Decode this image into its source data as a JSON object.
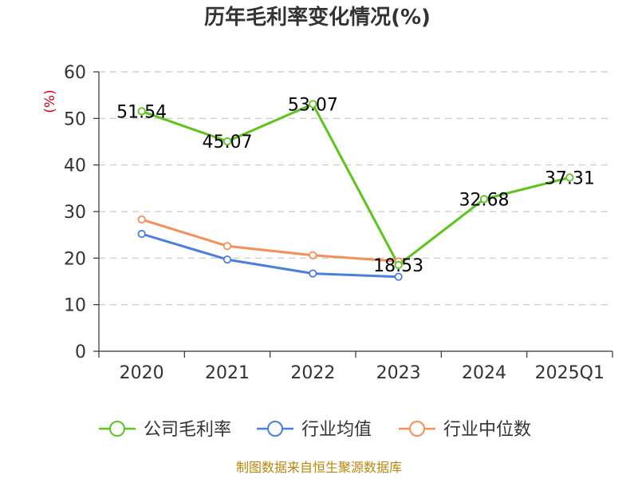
{
  "chart_data": {
    "type": "line",
    "title": "历年毛利率变化情况(%)",
    "unit_label": "(%)",
    "categories": [
      "2020",
      "2021",
      "2022",
      "2023",
      "2024",
      "2025Q1"
    ],
    "ylim": [
      0,
      60
    ],
    "yticks": [
      0,
      10,
      20,
      30,
      40,
      50,
      60
    ],
    "grid": true,
    "legend_position": "bottom",
    "series": [
      {
        "name": "公司毛利率",
        "color": "#5cc41c",
        "values": [
          51.54,
          45.07,
          53.07,
          18.53,
          32.68,
          37.31
        ],
        "labels": [
          "51.54",
          "45.07",
          "53.07",
          "18.53",
          "32.68",
          "37.31"
        ]
      },
      {
        "name": "行业均值",
        "color": "#4a7fdb",
        "values": [
          25.2,
          19.7,
          16.7,
          16.0,
          null,
          null
        ]
      },
      {
        "name": "行业中位数",
        "color": "#f5905a",
        "values": [
          28.3,
          22.6,
          20.6,
          19.3,
          null,
          null
        ]
      }
    ],
    "source": "制图数据来自恒生聚源数据库"
  }
}
